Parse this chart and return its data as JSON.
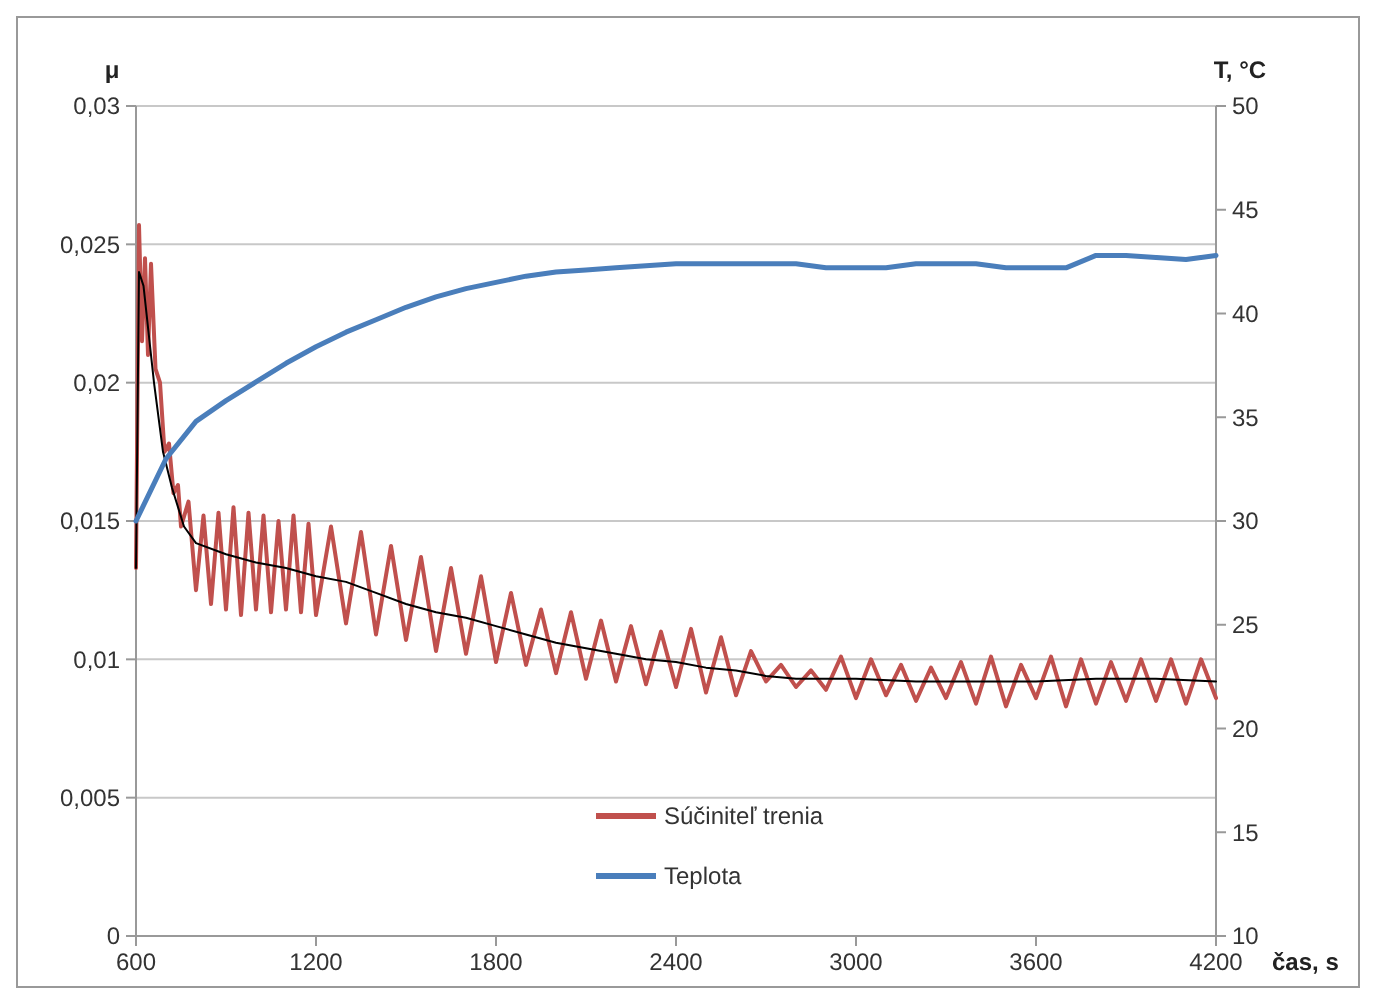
{
  "chart_data": {
    "type": "line",
    "ylabel": "μ",
    "y2label": "T, °C",
    "xlabel": "čas, s",
    "xlim": [
      600,
      4200
    ],
    "xticks": [
      600,
      1200,
      1800,
      2400,
      3000,
      3600,
      4200
    ],
    "ylim": [
      0,
      0.03
    ],
    "yticks": [
      {
        "value": 0,
        "label": "0"
      },
      {
        "value": 0.005,
        "label": "0,005"
      },
      {
        "value": 0.01,
        "label": "0,01"
      },
      {
        "value": 0.015,
        "label": "0,015"
      },
      {
        "value": 0.02,
        "label": "0,02"
      },
      {
        "value": 0.025,
        "label": "0,025"
      },
      {
        "value": 0.03,
        "label": "0,03"
      }
    ],
    "y2lim": [
      10,
      50
    ],
    "y2ticks": [
      10,
      15,
      20,
      25,
      30,
      35,
      40,
      45,
      50
    ],
    "grid": "y",
    "legend": "bottom",
    "marker": "none",
    "line_style": "solid",
    "series": [
      {
        "name": "Súčiniteľ trenia",
        "color": "#c0504d",
        "x": [
          600,
          610,
          620,
          630,
          640,
          650,
          665,
          680,
          695,
          710,
          725,
          740,
          750,
          775,
          800,
          825,
          850,
          875,
          900,
          925,
          950,
          975,
          1000,
          1025,
          1050,
          1075,
          1100,
          1125,
          1150,
          1175,
          1200,
          1250,
          1300,
          1350,
          1400,
          1450,
          1500,
          1550,
          1600,
          1650,
          1700,
          1750,
          1800,
          1850,
          1900,
          1950,
          2000,
          2050,
          2100,
          2150,
          2200,
          2250,
          2300,
          2350,
          2400,
          2450,
          2500,
          2550,
          2600,
          2650,
          2700,
          2750,
          2800,
          2850,
          2900,
          2950,
          3000,
          3050,
          3100,
          3150,
          3200,
          3250,
          3300,
          3350,
          3400,
          3450,
          3500,
          3550,
          3600,
          3650,
          3700,
          3750,
          3800,
          3850,
          3900,
          3950,
          4000,
          4050,
          4100,
          4150,
          4200
        ],
        "values": [
          0.0133,
          0.0257,
          0.0215,
          0.0245,
          0.021,
          0.0243,
          0.0205,
          0.02,
          0.0175,
          0.0178,
          0.016,
          0.0163,
          0.0148,
          0.0157,
          0.0125,
          0.0152,
          0.012,
          0.0153,
          0.0118,
          0.0155,
          0.0116,
          0.0153,
          0.0118,
          0.0152,
          0.0117,
          0.015,
          0.0118,
          0.0152,
          0.0117,
          0.0149,
          0.0116,
          0.0148,
          0.0113,
          0.0146,
          0.0109,
          0.0141,
          0.0107,
          0.0137,
          0.0103,
          0.0133,
          0.0102,
          0.013,
          0.0099,
          0.0124,
          0.0098,
          0.0118,
          0.0095,
          0.0117,
          0.0093,
          0.0114,
          0.0092,
          0.0112,
          0.0091,
          0.011,
          0.009,
          0.0111,
          0.0088,
          0.0108,
          0.0087,
          0.0103,
          0.0092,
          0.0098,
          0.009,
          0.0096,
          0.0089,
          0.0101,
          0.0086,
          0.01,
          0.0087,
          0.0098,
          0.0085,
          0.0097,
          0.0086,
          0.0099,
          0.0084,
          0.0101,
          0.0083,
          0.0098,
          0.0086,
          0.0101,
          0.0083,
          0.01,
          0.0084,
          0.0099,
          0.0085,
          0.01,
          0.0085,
          0.01,
          0.0084,
          0.01,
          0.0086
        ]
      },
      {
        "color": "#000000",
        "x": [
          600,
          610,
          625,
          640,
          660,
          690,
          720,
          760,
          800,
          900,
          1000,
          1100,
          1200,
          1300,
          1400,
          1500,
          1600,
          1700,
          1800,
          1900,
          2000,
          2100,
          2200,
          2300,
          2400,
          2500,
          2600,
          2700,
          2800,
          3000,
          3200,
          3400,
          3600,
          3800,
          4000,
          4200
        ],
        "values": [
          0.0133,
          0.024,
          0.0235,
          0.022,
          0.02,
          0.0175,
          0.0162,
          0.0148,
          0.0142,
          0.0138,
          0.0135,
          0.0133,
          0.013,
          0.0128,
          0.0124,
          0.012,
          0.0117,
          0.0115,
          0.0112,
          0.0109,
          0.0106,
          0.0104,
          0.0102,
          0.01,
          0.0099,
          0.0097,
          0.0096,
          0.0094,
          0.0093,
          0.0093,
          0.0092,
          0.0092,
          0.0092,
          0.0093,
          0.0093,
          0.0092
        ]
      },
      {
        "name": "Teplota",
        "color": "#4a7ebb",
        "axis": "y2",
        "x": [
          600,
          650,
          700,
          800,
          900,
          1000,
          1100,
          1200,
          1300,
          1400,
          1500,
          1600,
          1700,
          1800,
          1900,
          2000,
          2100,
          2200,
          2400,
          2600,
          2800,
          2900,
          3100,
          3200,
          3400,
          3500,
          3700,
          3800,
          3900,
          4100,
          4200
        ],
        "values": [
          30,
          31.5,
          33,
          34.8,
          35.8,
          36.7,
          37.6,
          38.4,
          39.1,
          39.7,
          40.3,
          40.8,
          41.2,
          41.5,
          41.8,
          42,
          42.1,
          42.2,
          42.4,
          42.4,
          42.4,
          42.2,
          42.2,
          42.4,
          42.4,
          42.2,
          42.2,
          42.8,
          42.8,
          42.6,
          42.8
        ]
      }
    ]
  }
}
